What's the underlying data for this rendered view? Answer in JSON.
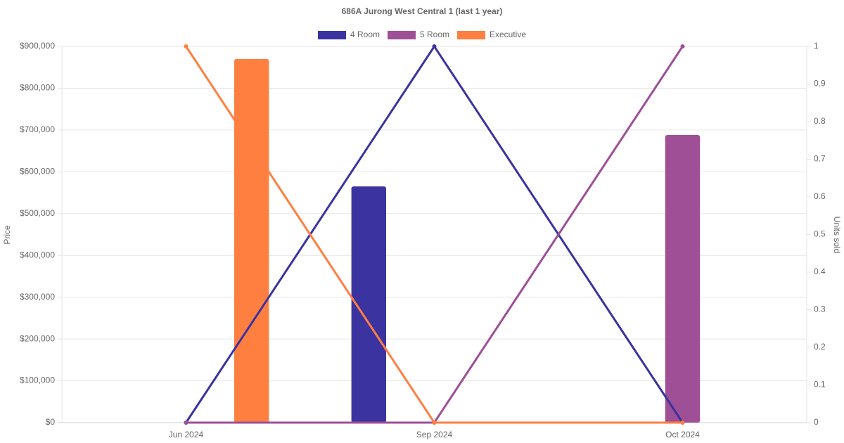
{
  "chart_data": {
    "type": "bar-line",
    "title": "686A Jurong West Central 1 (last 1 year)",
    "y_label": "Price",
    "y2_label": "Units sold",
    "categories": [
      "Jun 2024",
      "Sep 2024",
      "Oct 2024"
    ],
    "series": [
      {
        "name": "4 Room",
        "color": "#3a33a0",
        "values": [
          null,
          565000,
          null
        ],
        "units_sold": [
          0,
          1,
          0
        ]
      },
      {
        "name": "5 Room",
        "color": "#9e4f96",
        "values": [
          null,
          null,
          688000
        ],
        "units_sold": [
          0,
          0,
          1
        ]
      },
      {
        "name": "Executive",
        "color": "#ff7f41",
        "values": [
          870000,
          null,
          null
        ],
        "units_sold": [
          1,
          0,
          0
        ]
      }
    ],
    "ylim": [
      0,
      900000
    ],
    "yticks": [
      {
        "value": 0,
        "label": "$0"
      },
      {
        "value": 100000,
        "label": "$100,000"
      },
      {
        "value": 200000,
        "label": "$200,000"
      },
      {
        "value": 300000,
        "label": "$300,000"
      },
      {
        "value": 400000,
        "label": "$400,000"
      },
      {
        "value": 500000,
        "label": "$500,000"
      },
      {
        "value": 600000,
        "label": "$600,000"
      },
      {
        "value": 700000,
        "label": "$700,000"
      },
      {
        "value": 800000,
        "label": "$800,000"
      },
      {
        "value": 900000,
        "label": "$900,000"
      }
    ],
    "y2lim": [
      0,
      1
    ],
    "y2ticks": [
      0,
      0.1,
      0.2,
      0.3,
      0.4,
      0.5,
      0.6,
      0.7,
      0.8,
      0.9,
      1
    ],
    "grid": true
  }
}
